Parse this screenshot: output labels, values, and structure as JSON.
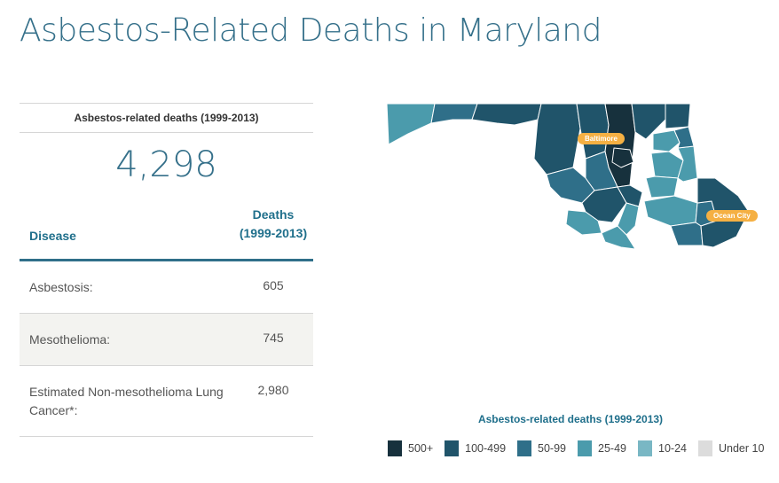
{
  "page": {
    "title": "Asbestos-Related Deaths in Maryland"
  },
  "summary": {
    "total_label": "Asbestos-related deaths (1999-2013)",
    "total_value": "4,298"
  },
  "table": {
    "header_disease": "Disease",
    "header_deaths": "Deaths (1999-2013)",
    "rows": [
      {
        "disease": "Asbestosis:",
        "deaths": "605"
      },
      {
        "disease": "Mesothelioma:",
        "deaths": "745"
      },
      {
        "disease": "Estimated Non-mesothelioma Lung Cancer*:",
        "deaths": "2,980"
      }
    ]
  },
  "map": {
    "cities": [
      {
        "name": "Baltimore"
      },
      {
        "name": "Ocean City"
      }
    ],
    "colors": {
      "level_500_plus": "#17313d",
      "level_100_499": "#20546a",
      "level_50_99": "#2f6f89",
      "level_25_49": "#4b9bac",
      "level_10_24": "#79b7c4",
      "under_10": "#dcdcdc",
      "city_badge": "#f5b043"
    }
  },
  "legend": {
    "title": "Asbestos-related deaths (1999-2013)",
    "items": [
      {
        "label": "500+",
        "color": "#17313d"
      },
      {
        "label": "100-499",
        "color": "#20546a"
      },
      {
        "label": "50-99",
        "color": "#2f6f89"
      },
      {
        "label": "25-49",
        "color": "#4b9bac"
      },
      {
        "label": "10-24",
        "color": "#79b7c4"
      },
      {
        "label": "Under 10",
        "color": "#dcdcdc"
      }
    ]
  }
}
